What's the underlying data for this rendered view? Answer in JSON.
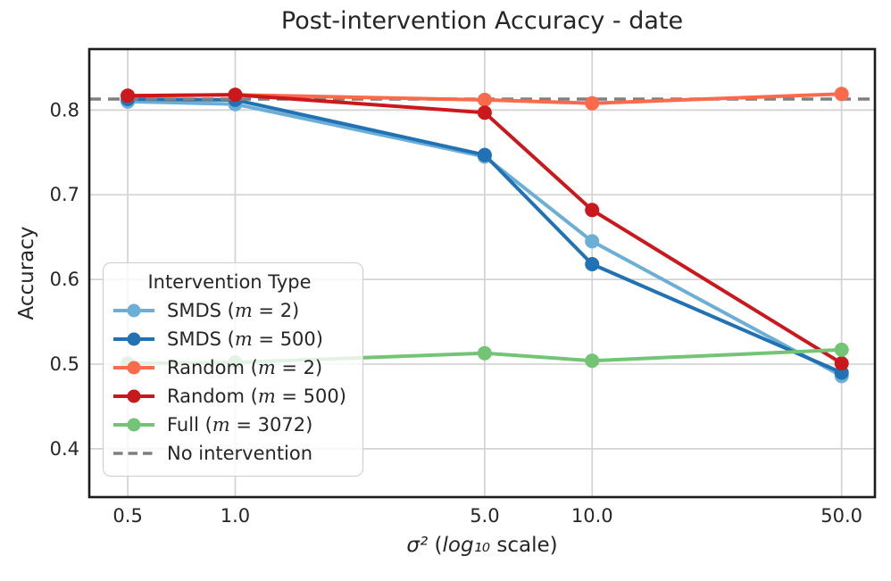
{
  "chart_data": {
    "type": "line",
    "title": "Post-intervention Accuracy - date",
    "ylabel": "Accuracy",
    "xlabel_text": "σ² (log₁₀ scale)",
    "xlabel_parts": [
      {
        "text": "σ²",
        "italic": true
      },
      {
        "text": " (",
        "italic": false
      },
      {
        "text": "log₁₀",
        "italic": true
      },
      {
        "text": " scale)",
        "italic": false
      }
    ],
    "x_scale": "log10",
    "x": [
      0.5,
      1.0,
      5.0,
      10.0,
      50.0
    ],
    "x_tick_labels": [
      "0.5",
      "1.0",
      "5.0",
      "10.0",
      "50.0"
    ],
    "y_ticks": [
      0.4,
      0.5,
      0.6,
      0.7,
      0.8
    ],
    "y_tick_labels": [
      "0.4",
      "0.5",
      "0.6",
      "0.7",
      "0.8"
    ],
    "xlim": [
      0.39,
      62
    ],
    "ylim": [
      0.343,
      0.872
    ],
    "grid": true,
    "legend_title": "Intervention Type",
    "legend_position": "lower left",
    "series": [
      {
        "name": "SMDS (m = 2)",
        "color": "#6baed6",
        "values": [
          0.81,
          0.807,
          0.745,
          0.645,
          0.486
        ]
      },
      {
        "name": "SMDS (m = 500)",
        "color": "#2171b5",
        "values": [
          0.813,
          0.812,
          0.747,
          0.618,
          0.49
        ]
      },
      {
        "name": "Random (m = 2)",
        "color": "#fb6a4a",
        "values": [
          0.817,
          0.818,
          0.812,
          0.808,
          0.819
        ]
      },
      {
        "name": "Random (m = 500)",
        "color": "#cb181d",
        "values": [
          0.817,
          0.818,
          0.797,
          0.682,
          0.501
        ]
      },
      {
        "name": "Full (m = 3072)",
        "color": "#74c476",
        "values": [
          0.501,
          0.502,
          0.513,
          0.504,
          0.517
        ]
      }
    ],
    "reference_line": {
      "name": "No intervention",
      "color": "#7f7f7f",
      "style": "dashed",
      "value": 0.813
    },
    "colors": {
      "gridline": "#d4d4d4",
      "spine": "#1c1c1c",
      "text": "#262626",
      "legend_border": "#cccccc"
    }
  }
}
